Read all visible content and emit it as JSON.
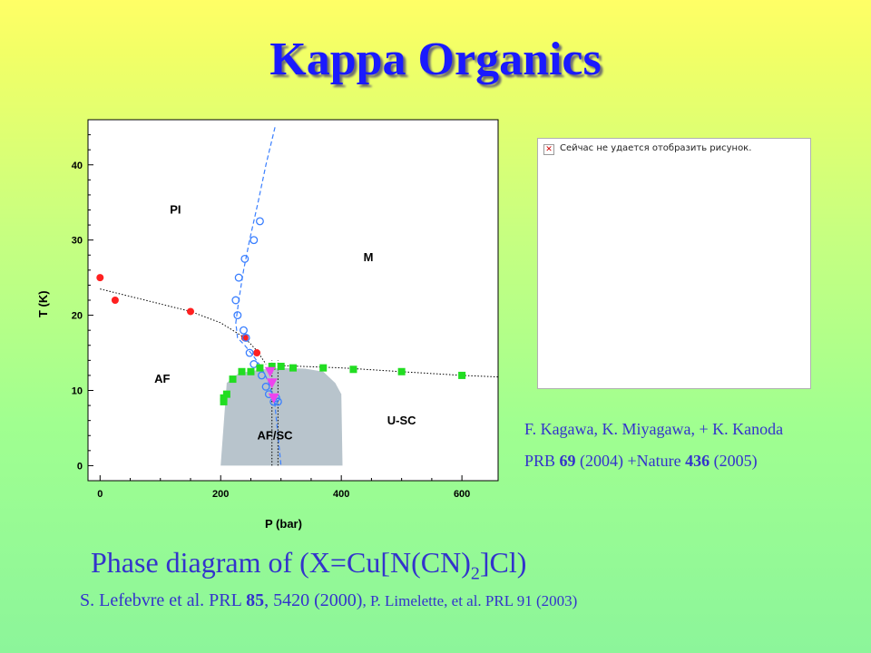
{
  "slide": {
    "title": "Kappa Organics",
    "caption_main": "Phase diagram of  (X=Cu[N(CN)",
    "caption_sub": "2",
    "caption_end": "]Cl)",
    "citation": {
      "part1": "S. Lefebvre et al. PRL ",
      "vol1": "85",
      "part2": ", 5420 (2000)",
      "part3": ", P. Limelette, et al. PRL 91 (2003)"
    },
    "ref_right": {
      "authors": "F. Kagawa, K. Miyagawa, + K. Kanoda",
      "pre": "PRB ",
      "vol1": "69",
      "mid": " (2004) +Nature ",
      "vol2": "436",
      "post": " (2005)"
    },
    "broken_image_text": "Сейчас не удается отобразить рисунок."
  },
  "chart_data": {
    "type": "scatter",
    "xlabel": "P   (bar)",
    "ylabel": "T  (K)",
    "xlim": [
      -20,
      660
    ],
    "ylim": [
      -2,
      46
    ],
    "x_ticks": [
      0,
      200,
      400,
      600
    ],
    "y_ticks": [
      0,
      10,
      20,
      30,
      40
    ],
    "grid": false,
    "colors": {
      "red": "#ff2020",
      "blue": "#3a7fff",
      "green": "#22dd22",
      "magenta": "#ee44ee",
      "region": "#b8c4cc"
    },
    "regions": [
      {
        "label": "PI",
        "x": 125,
        "y": 33.5
      },
      {
        "label": "M",
        "x": 445,
        "y": 27.2
      },
      {
        "label": "AF",
        "x": 103,
        "y": 11
      },
      {
        "label": "AF/SC",
        "x": 290,
        "y": 3.5
      },
      {
        "label": "U-SC",
        "x": 500,
        "y": 5.5
      }
    ],
    "series": [
      {
        "marker": "circle-filled",
        "color": "red",
        "x": [
          0,
          25,
          150,
          240,
          260
        ],
        "y": [
          25,
          22,
          20.5,
          17,
          15
        ]
      },
      {
        "marker": "circle-open",
        "color": "blue",
        "x": [
          265,
          255,
          240,
          230,
          225,
          228,
          238,
          242,
          248,
          255,
          268,
          275,
          280,
          288,
          292,
          295
        ],
        "y": [
          32.5,
          30,
          27.5,
          25,
          22,
          20,
          18,
          17,
          15,
          13.5,
          12,
          10.5,
          9.5,
          8.5,
          9,
          8.5
        ]
      },
      {
        "marker": "square",
        "color": "green",
        "x": [
          205,
          210,
          220,
          235,
          250,
          265,
          285,
          300,
          320,
          370,
          420,
          500,
          600,
          205
        ],
        "y": [
          9,
          9.5,
          11.5,
          12.5,
          12.5,
          13,
          13.2,
          13.2,
          13,
          13,
          12.8,
          12.5,
          12,
          8.5
        ]
      },
      {
        "marker": "triangle-down",
        "color": "magenta",
        "x": [
          282,
          285,
          288
        ],
        "y": [
          12.5,
          11,
          9
        ]
      }
    ],
    "lines": [
      {
        "style": "dotted",
        "color": "#000000",
        "x": [
          0,
          100,
          150,
          200,
          240,
          260,
          275
        ],
        "y": [
          23.5,
          21.5,
          20.5,
          19,
          17,
          15.3,
          13.5
        ]
      },
      {
        "style": "dashed",
        "color": "blue",
        "x": [
          290,
          275,
          262,
          248,
          238,
          230,
          225,
          228,
          240,
          255,
          268,
          280,
          290,
          295,
          300
        ],
        "y": [
          45,
          40,
          35,
          30,
          26,
          22,
          19,
          17,
          16,
          14.5,
          13,
          11,
          8,
          4,
          0
        ]
      },
      {
        "style": "dotted",
        "color": "#000000",
        "x": [
          300,
          400,
          500,
          600,
          660
        ],
        "y": [
          13.3,
          13,
          12.5,
          12,
          11.8
        ]
      }
    ],
    "sc_region": {
      "x": [
        200,
        210,
        230,
        270,
        300,
        340,
        370,
        390,
        400,
        402,
        200
      ],
      "y": [
        0,
        11,
        12.3,
        12.8,
        13,
        12.9,
        12.5,
        11,
        9.5,
        0,
        0
      ]
    },
    "vertical_dotted": [
      {
        "x": 285,
        "y_from": 0,
        "y_to": 14
      },
      {
        "x": 295,
        "y_from": 0,
        "y_to": 14
      }
    ]
  }
}
